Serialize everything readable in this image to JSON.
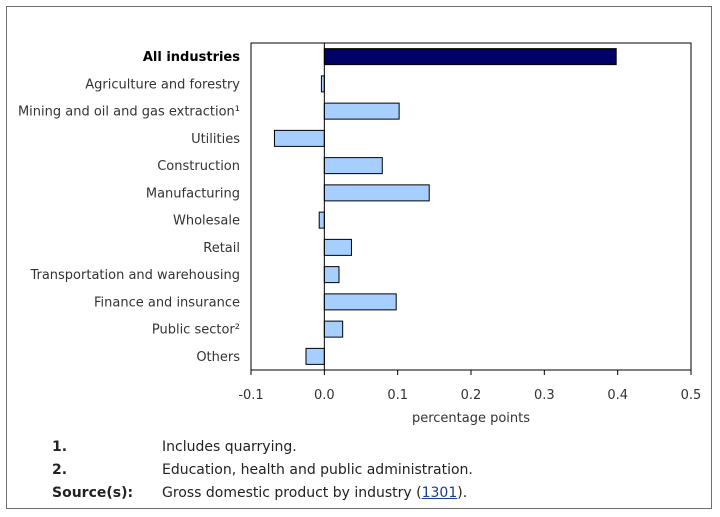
{
  "chart_data": {
    "type": "bar",
    "orientation": "horizontal",
    "categories": [
      "All industries",
      "Agriculture and forestry",
      "Mining and oil and gas extraction¹",
      "Utilities",
      "Construction",
      "Manufacturing",
      "Wholesale",
      "Retail",
      "Transportation and warehousing",
      "Finance and insurance",
      "Public sector²",
      "Others"
    ],
    "values": [
      0.398,
      -0.004,
      0.102,
      -0.068,
      0.079,
      0.143,
      -0.007,
      0.037,
      0.02,
      0.098,
      0.025,
      -0.025
    ],
    "highlight_index": 0,
    "xlabel": "percentage points",
    "xlim": [
      -0.1,
      0.5
    ],
    "xticks": [
      "-0.1",
      "0.0",
      "0.1",
      "0.2",
      "0.3",
      "0.4",
      "0.5"
    ],
    "colors": {
      "highlight": "#000066",
      "default": "#a6cfff",
      "stroke": "#000000"
    },
    "grid": false
  },
  "notes": [
    {
      "key": "1.",
      "text": "Includes quarrying."
    },
    {
      "key": "2.",
      "text": "Education, health and public administration."
    }
  ],
  "source": {
    "key": "Source(s):",
    "text_before": "Gross domestic product by industry (",
    "link": "1301",
    "text_after": ")."
  }
}
